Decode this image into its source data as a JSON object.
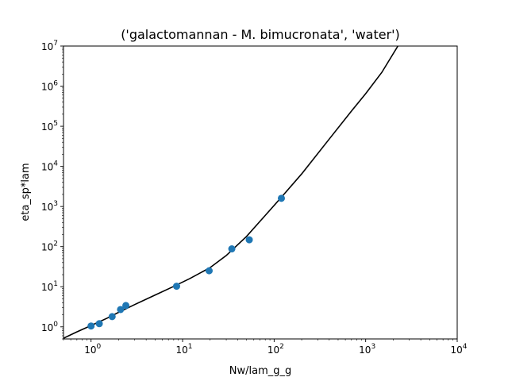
{
  "chart_data": {
    "type": "scatter",
    "title": "('galactomannan - M. bimucronata', 'water')",
    "xlabel": "Nw/lam_g_g",
    "ylabel": "eta_sp*lam",
    "xscale": "log",
    "yscale": "log",
    "xlim": [
      0.5,
      10000
    ],
    "ylim": [
      0.5,
      10000000
    ],
    "grid": false,
    "x_ticks": [
      {
        "base": "10",
        "exp": "0"
      },
      {
        "base": "10",
        "exp": "1"
      },
      {
        "base": "10",
        "exp": "2"
      },
      {
        "base": "10",
        "exp": "3"
      },
      {
        "base": "10",
        "exp": "4"
      }
    ],
    "y_ticks": [
      {
        "base": "10",
        "exp": "0"
      },
      {
        "base": "10",
        "exp": "1"
      },
      {
        "base": "10",
        "exp": "2"
      },
      {
        "base": "10",
        "exp": "3"
      },
      {
        "base": "10",
        "exp": "4"
      },
      {
        "base": "10",
        "exp": "5"
      },
      {
        "base": "10",
        "exp": "6"
      },
      {
        "base": "10",
        "exp": "7"
      }
    ],
    "points": {
      "color": "#1f77b4",
      "x": [
        1.0,
        1.23,
        1.7,
        2.1,
        2.4,
        8.6,
        19.5,
        34.5,
        53.5,
        120
      ],
      "y": [
        1.05,
        1.2,
        1.8,
        2.7,
        3.4,
        10.3,
        25,
        88,
        148,
        1600
      ]
    },
    "fit_line": {
      "color": "#000000",
      "x": [
        0.5,
        0.7,
        1.0,
        1.5,
        2.0,
        3.0,
        5.0,
        8.0,
        12,
        20,
        30,
        50,
        80,
        120,
        200,
        400,
        700,
        1000,
        1500,
        2250
      ],
      "y": [
        0.52,
        0.75,
        1.08,
        1.65,
        2.3,
        3.6,
        6.2,
        10.2,
        16,
        30,
        60,
        180,
        600,
        1700,
        6500,
        48000,
        240000,
        650000,
        2200000,
        10000000
      ]
    }
  }
}
